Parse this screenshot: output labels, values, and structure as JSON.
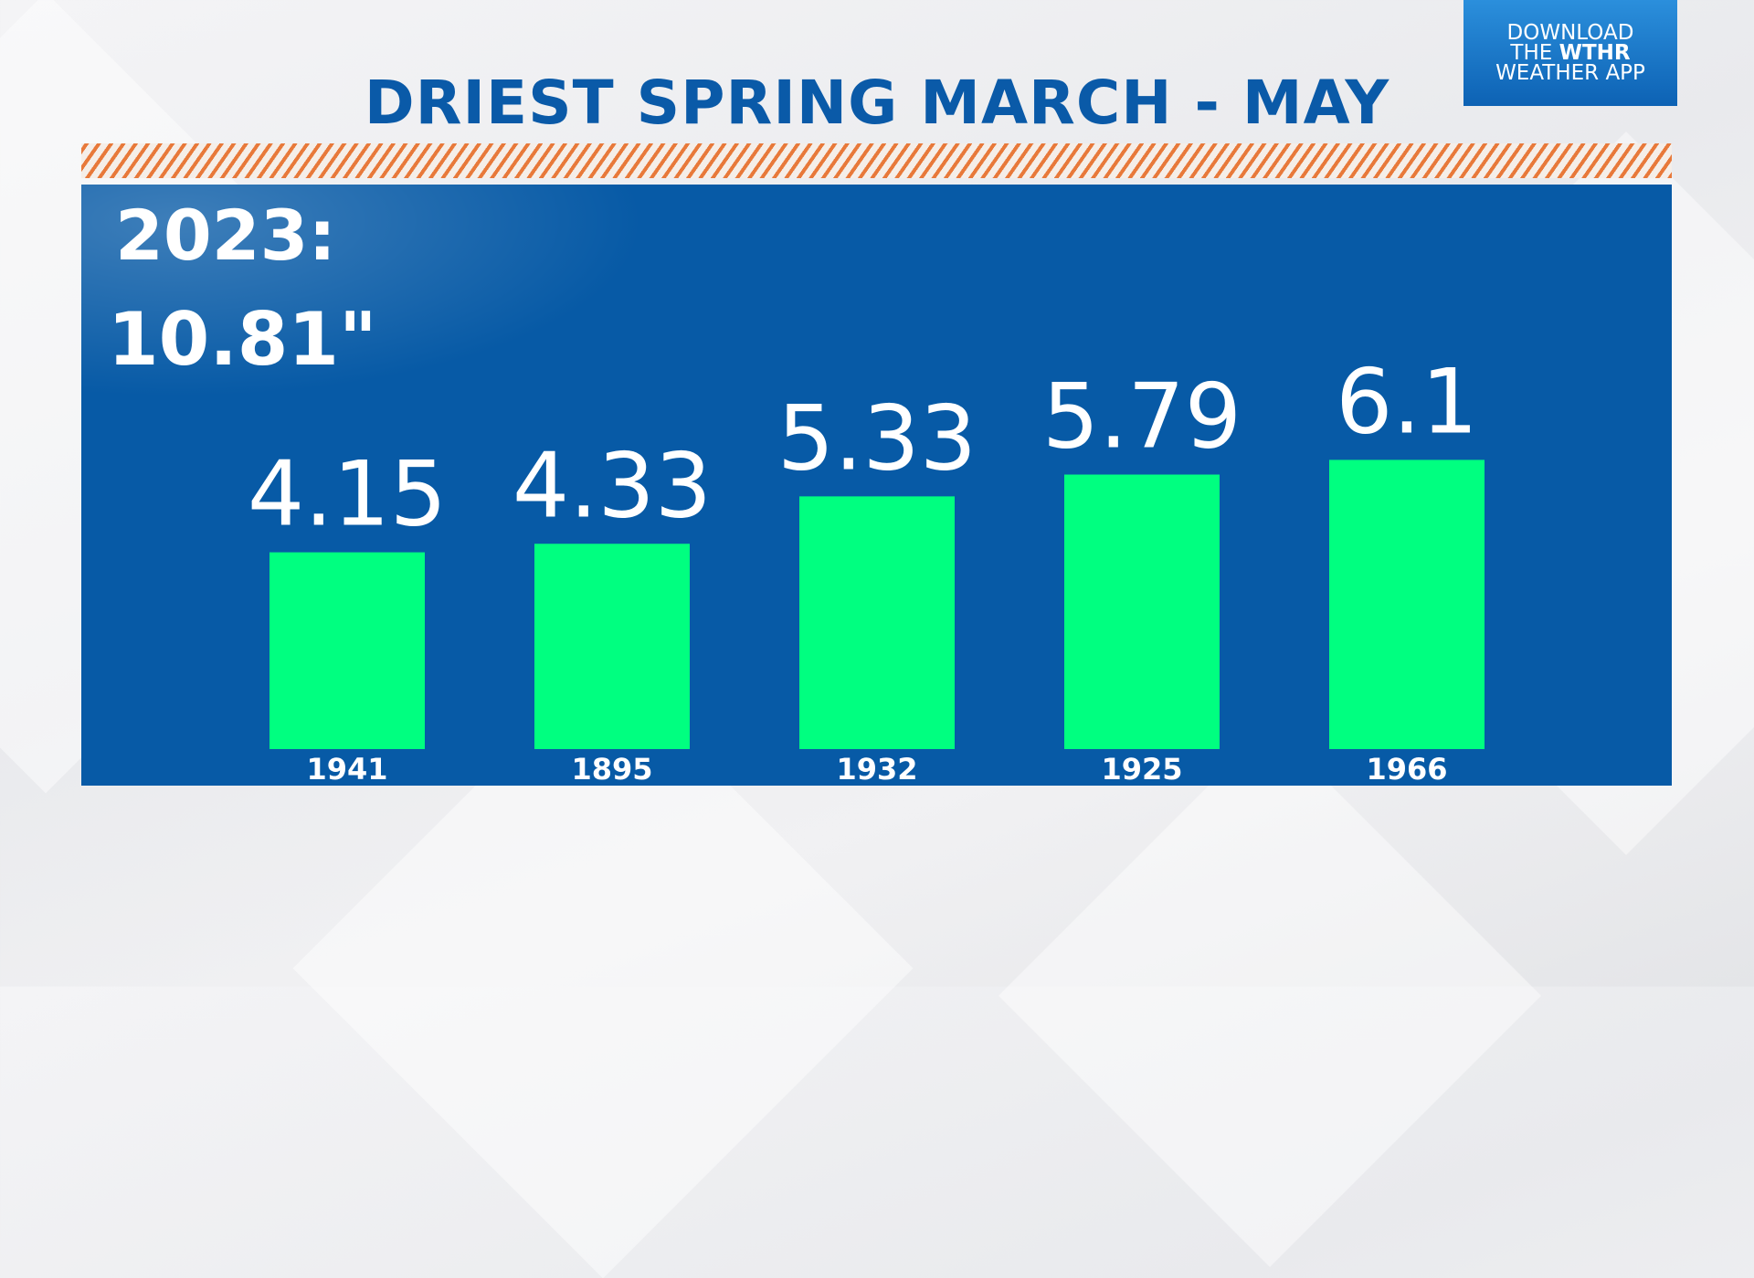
{
  "header": {
    "title": "DRIEST SPRING MARCH - MAY"
  },
  "badge": {
    "line1": "DOWNLOAD",
    "line2_prefix": "THE ",
    "line2_brand": "WTHR",
    "line3": "WEATHER APP"
  },
  "current": {
    "year_label": "2023:",
    "value_label": "10.81\""
  },
  "colors": {
    "title": "#0a5aa8",
    "panel": "#075aa6",
    "bar": "#00ff80",
    "hatch": "#e8793a"
  },
  "chart_data": {
    "type": "bar",
    "title": "DRIEST SPRING MARCH - MAY",
    "categories": [
      "1941",
      "1895",
      "1932",
      "1925",
      "1966"
    ],
    "values": [
      4.15,
      4.33,
      5.33,
      5.79,
      6.1
    ],
    "value_labels": [
      "4.15",
      "4.33",
      "5.33",
      "5.79",
      "6.1"
    ],
    "xlabel": "",
    "ylabel": "",
    "ylim": [
      0,
      10
    ],
    "grid": false,
    "legend": "none"
  }
}
